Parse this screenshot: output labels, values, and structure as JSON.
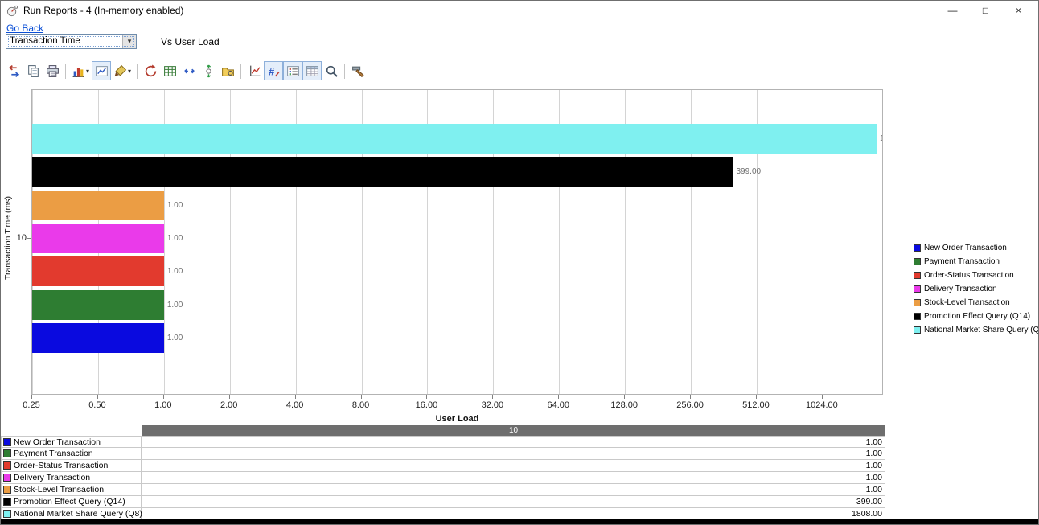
{
  "window": {
    "title": "Run Reports - 4 (In-memory enabled)",
    "minimize_glyph": "—",
    "maximize_glyph": "□",
    "close_glyph": "×"
  },
  "nav": {
    "go_back_label": "Go Back"
  },
  "controls": {
    "metric_dropdown_value": "Transaction Time",
    "dropdown_glyph": "▾",
    "vs_label": "Vs User Load"
  },
  "toolbar": {
    "groups": [
      [
        "export-data-icon",
        "copy-icon",
        "print-icon"
      ],
      [
        "chart-gallery-icon",
        "chart-frame-icon",
        "paint-brush-icon"
      ],
      [
        "rotate-3d-icon",
        "grid-icon",
        "horizontal-arrows-icon",
        "vertical-arrows-icon",
        "gear-folder-icon"
      ],
      [
        "axes-chart-icon",
        "data-labels-icon",
        "legend-toggle-icon",
        "data-table-icon",
        "zoom-icon"
      ],
      [
        "tools-icon"
      ]
    ],
    "dropdown_icons": [
      "chart-gallery-icon",
      "paint-brush-icon"
    ],
    "pressed_icons": [
      "chart-frame-icon",
      "data-labels-icon",
      "legend-toggle-icon",
      "data-table-icon"
    ]
  },
  "chart_data": {
    "type": "bar",
    "orientation": "horizontal",
    "xlabel": "User Load",
    "ylabel": "Transaction Time (ms)",
    "x_scale": "log2",
    "xlim": [
      0.25,
      1950
    ],
    "x_ticks": [
      0.25,
      0.5,
      1,
      2,
      4,
      8,
      16,
      32,
      64,
      128,
      256,
      512,
      1024
    ],
    "x_tick_labels": [
      "0.25",
      "0.50",
      "1.00",
      "2.00",
      "4.00",
      "8.00",
      "16.00",
      "32.00",
      "64.00",
      "128.00",
      "256.00",
      "512.00",
      "1024.00"
    ],
    "y_tick_label": "10",
    "category": "10",
    "grid": "vertical",
    "legend_position": "right",
    "series": [
      {
        "name": "New Order Transaction",
        "color": "#0a0adf",
        "value": 1.0,
        "label": "1.00"
      },
      {
        "name": "Payment Transaction",
        "color": "#2e7d32",
        "value": 1.0,
        "label": "1.00"
      },
      {
        "name": "Order-Status Transaction",
        "color": "#e23a2e",
        "value": 1.0,
        "label": "1.00"
      },
      {
        "name": "Delivery Transaction",
        "color": "#ea3aea",
        "value": 1.0,
        "label": "1.00"
      },
      {
        "name": "Stock-Level Transaction",
        "color": "#eb9d44",
        "value": 1.0,
        "label": "1.00"
      },
      {
        "name": "Promotion Effect Query (Q14)",
        "color": "#000000",
        "value": 399.0,
        "label": "399.00"
      },
      {
        "name": "National Market Share Query (Q8)",
        "color": "#7ff0f0",
        "value": 1808.0,
        "label": "1808.00"
      }
    ]
  },
  "table": {
    "header": "10",
    "rows": [
      {
        "name": "New Order Transaction",
        "value": "1.00"
      },
      {
        "name": "Payment Transaction",
        "value": "1.00"
      },
      {
        "name": "Order-Status Transaction",
        "value": "1.00"
      },
      {
        "name": "Delivery Transaction",
        "value": "1.00"
      },
      {
        "name": "Stock-Level Transaction",
        "value": "1.00"
      },
      {
        "name": "Promotion Effect Query (Q14)",
        "value": "399.00"
      },
      {
        "name": "National Market Share Query (Q8)",
        "value": "1808.00"
      }
    ]
  }
}
